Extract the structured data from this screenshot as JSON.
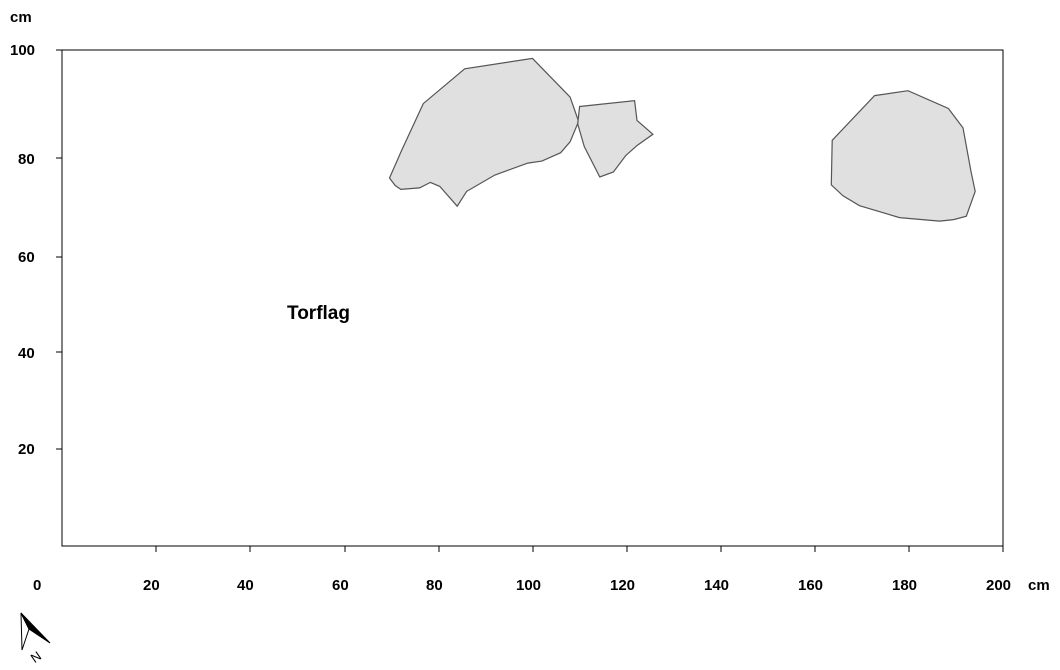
{
  "diagram": {
    "y_unit": "cm",
    "x_unit": "cm",
    "x_origin_label": "0",
    "x_ticks": [
      "20",
      "40",
      "60",
      "80",
      "100",
      "120",
      "140",
      "160",
      "180",
      "200"
    ],
    "y_ticks": [
      "20",
      "40",
      "60",
      "80",
      "100"
    ],
    "area_label": "Torflag",
    "north_label": "N",
    "stone_fill": "#e0e0e0",
    "stone_outline": "#555555",
    "stones": [
      {
        "name": "stone-large-left",
        "points": [
          [
            69.6,
            74.2
          ],
          [
            72.2,
            79.8
          ],
          [
            76.8,
            89.2
          ],
          [
            85.6,
            96.2
          ],
          [
            100,
            98.3
          ],
          [
            108,
            90.5
          ],
          [
            109.8,
            85.6
          ],
          [
            108,
            81.5
          ],
          [
            106,
            79.3
          ],
          [
            102,
            77.6
          ],
          [
            99,
            77.2
          ],
          [
            92,
            74.8
          ],
          [
            86,
            71.5
          ],
          [
            84,
            68.5
          ],
          [
            80.3,
            72.5
          ],
          [
            78.3,
            73.3
          ],
          [
            76,
            72.2
          ],
          [
            72,
            71.9
          ],
          [
            70.8,
            72.7
          ],
          [
            69.6,
            74.2
          ]
        ]
      },
      {
        "name": "stone-small-middle",
        "points": [
          [
            110,
            88.6
          ],
          [
            121.7,
            89.8
          ],
          [
            122.2,
            85.8
          ],
          [
            125.6,
            83
          ],
          [
            122.3,
            80.8
          ],
          [
            119.8,
            78.7
          ],
          [
            117.2,
            75.4
          ],
          [
            114.3,
            74.4
          ],
          [
            111,
            80.5
          ],
          [
            109.6,
            85.1
          ],
          [
            110,
            88.6
          ]
        ]
      },
      {
        "name": "stone-right",
        "points": [
          [
            163.7,
            81.8
          ],
          [
            172.7,
            90.8
          ],
          [
            179.8,
            91.8
          ],
          [
            188.4,
            88.2
          ],
          [
            191.5,
            84.3
          ],
          [
            193.2,
            75.5
          ],
          [
            194.1,
            71.5
          ],
          [
            192.2,
            66.5
          ],
          [
            189.5,
            65.8
          ],
          [
            186.5,
            65.5
          ],
          [
            178,
            66.2
          ],
          [
            169.5,
            68.6
          ],
          [
            166,
            70.6
          ],
          [
            163.5,
            72.8
          ],
          [
            163.7,
            81.8
          ]
        ]
      }
    ]
  }
}
